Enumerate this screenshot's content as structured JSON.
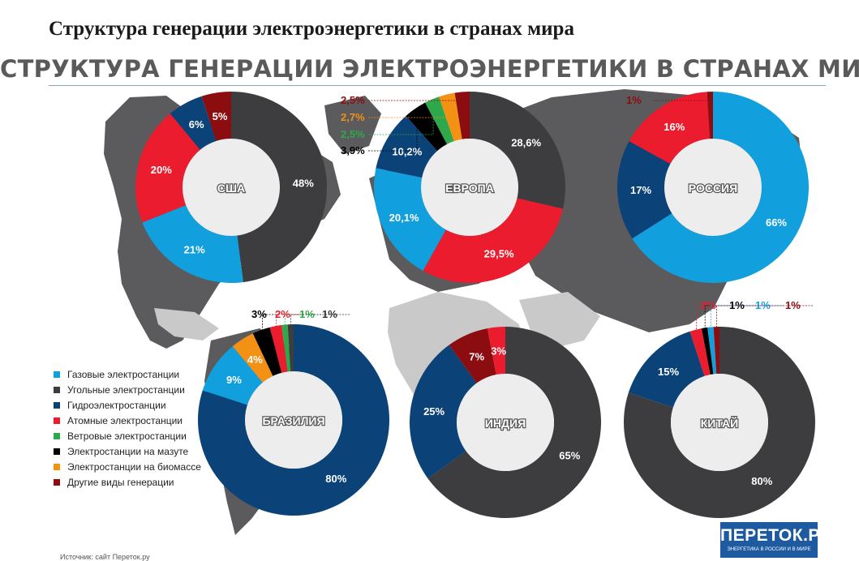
{
  "page_title": "Структура генерации электроэнергетики в странах мира",
  "banner_title": "СТРУКТУРА ГЕНЕРАЦИИ ЭЛЕКТРОЭНЕРГЕТИКИ В СТРАНАХ МИРА",
  "source_note": "Источник: сайт Переток.ру",
  "logo": {
    "text": "ПЕРЕТОК.РУ",
    "tagline": "ЭНЕРГЕТИКА В РОССИИ И В МИРЕ"
  },
  "legend": [
    {
      "key": "gas",
      "label": "Газовые электростанции",
      "color": "#129fdd"
    },
    {
      "key": "coal",
      "label": "Угольные электростанции",
      "color": "#3d3d3f"
    },
    {
      "key": "hydro",
      "label": "Гидроэлектростанции",
      "color": "#0b4277"
    },
    {
      "key": "nuclear",
      "label": "Атомные электростанции",
      "color": "#ea1c2d"
    },
    {
      "key": "wind",
      "label": "Ветровые электростанции",
      "color": "#2ea84a"
    },
    {
      "key": "oil",
      "label": "Электростанции на мазуте",
      "color": "#000000"
    },
    {
      "key": "biomass",
      "label": "Электростанции на биомассе",
      "color": "#f39114"
    },
    {
      "key": "other",
      "label": "Другие виды генерации",
      "color": "#8b0d10"
    }
  ],
  "chart_data": [
    {
      "type": "pie",
      "variant": "donut",
      "name": "США",
      "slices": [
        {
          "key": "coal",
          "value": 48,
          "label": "48%"
        },
        {
          "key": "gas",
          "value": 21,
          "label": "21%"
        },
        {
          "key": "nuclear",
          "value": 20,
          "label": "20%"
        },
        {
          "key": "hydro",
          "value": 6,
          "label": "6%"
        },
        {
          "key": "other",
          "value": 5,
          "label": "5%"
        }
      ]
    },
    {
      "type": "pie",
      "variant": "donut",
      "name": "ЕВРОПА",
      "slices": [
        {
          "key": "coal",
          "value": 28.6,
          "label": "28,6%"
        },
        {
          "key": "nuclear",
          "value": 29.5,
          "label": "29,5%"
        },
        {
          "key": "gas",
          "value": 20.1,
          "label": "20,1%"
        },
        {
          "key": "hydro",
          "value": 10.2,
          "label": "10,2%"
        },
        {
          "key": "oil",
          "value": 3.9,
          "label": "3,9%"
        },
        {
          "key": "wind",
          "value": 2.5,
          "label": "2,5%"
        },
        {
          "key": "biomass",
          "value": 2.7,
          "label": "2,7%"
        },
        {
          "key": "other",
          "value": 2.5,
          "label": "2,5%"
        }
      ]
    },
    {
      "type": "pie",
      "variant": "donut",
      "name": "РОССИЯ",
      "slices": [
        {
          "key": "gas",
          "value": 66,
          "label": "66%"
        },
        {
          "key": "oil",
          "value": 0,
          "label": ""
        },
        {
          "key": "hydro",
          "value": 17,
          "label": "17%"
        },
        {
          "key": "nuclear",
          "value": 16,
          "label": "16%"
        },
        {
          "key": "other",
          "value": 1,
          "label": "1%"
        }
      ]
    },
    {
      "type": "pie",
      "variant": "donut",
      "name": "БРАЗИЛИЯ",
      "slices": [
        {
          "key": "hydro",
          "value": 80,
          "label": "80%"
        },
        {
          "key": "gas",
          "value": 9,
          "label": "9%"
        },
        {
          "key": "biomass",
          "value": 4,
          "label": "4%"
        },
        {
          "key": "oil",
          "value": 3,
          "label": "3%"
        },
        {
          "key": "nuclear",
          "value": 2,
          "label": "2%"
        },
        {
          "key": "wind",
          "value": 1,
          "label": "1%"
        },
        {
          "key": "coal",
          "value": 1,
          "label": "1%"
        }
      ]
    },
    {
      "type": "pie",
      "variant": "donut",
      "name": "ИНДИЯ",
      "slices": [
        {
          "key": "gas",
          "value": 0,
          "label": ""
        },
        {
          "key": "coal",
          "value": 65,
          "label": "65%"
        },
        {
          "key": "hydro",
          "value": 25,
          "label": "25%"
        },
        {
          "key": "other",
          "value": 7,
          "label": "7%"
        },
        {
          "key": "nuclear",
          "value": 3,
          "label": "3%"
        }
      ]
    },
    {
      "type": "pie",
      "variant": "donut",
      "name": "КИТАЙ",
      "slices": [
        {
          "key": "coal",
          "value": 80,
          "label": "80%"
        },
        {
          "key": "hydro",
          "value": 15,
          "label": "15%"
        },
        {
          "key": "nuclear",
          "value": 2,
          "label": "2%"
        },
        {
          "key": "oil",
          "value": 1,
          "label": "1%"
        },
        {
          "key": "gas",
          "value": 1,
          "label": "1%"
        },
        {
          "key": "other",
          "value": 1,
          "label": "1%"
        }
      ]
    }
  ]
}
